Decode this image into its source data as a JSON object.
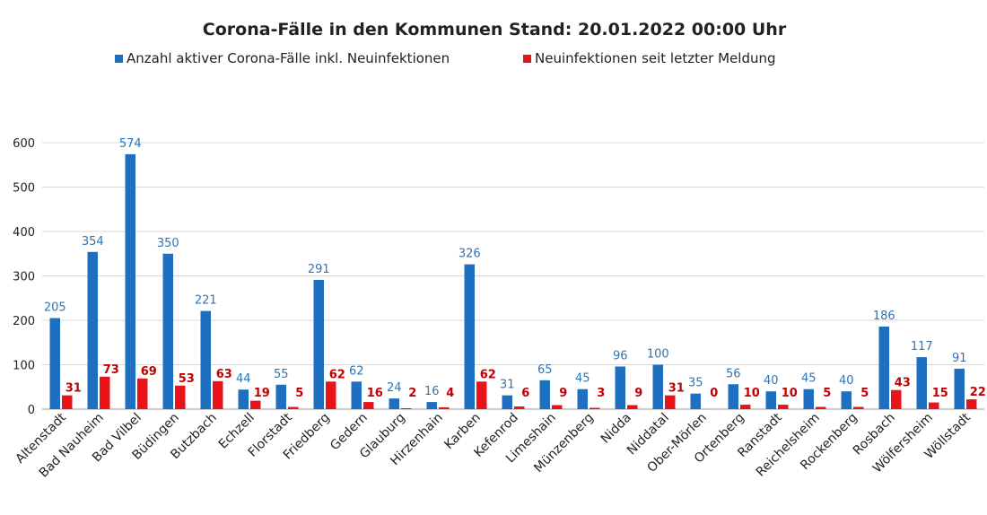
{
  "chart_data": {
    "type": "bar",
    "title": "Corona-Fälle in den Kommunen Stand: 20.01.2022 00:00 Uhr",
    "categories": [
      "Altenstadt",
      "Bad Nauheim",
      "Bad Vilbel",
      "Büdingen",
      "Butzbach",
      "Echzell",
      "Florstadt",
      "Friedberg",
      "Gedern",
      "Glauburg",
      "Hirzenhain",
      "Karben",
      "Kefenrod",
      "Limeshain",
      "Münzenberg",
      "Nidda",
      "Niddatal",
      "Ober-Mörlen",
      "Ortenberg",
      "Ranstadt",
      "Reichelsheim",
      "Rockenberg",
      "Rosbach",
      "Wölfersheim",
      "Wöllstadt"
    ],
    "series": [
      {
        "name": "Anzahl aktiver Corona-Fälle inkl. Neuinfektionen",
        "color": "#1f6fc1",
        "label_color": "#2e75b6",
        "values": [
          205,
          354,
          574,
          350,
          221,
          44,
          55,
          291,
          62,
          24,
          16,
          326,
          31,
          65,
          45,
          96,
          100,
          35,
          56,
          40,
          45,
          40,
          186,
          117,
          91
        ]
      },
      {
        "name": "Neuinfektionen seit letzter Meldung",
        "color": "#e8141a",
        "label_color": "#c00000",
        "values": [
          31,
          73,
          69,
          53,
          63,
          19,
          5,
          62,
          16,
          2,
          4,
          62,
          6,
          9,
          3,
          9,
          31,
          0,
          10,
          10,
          5,
          5,
          43,
          15,
          22
        ]
      }
    ],
    "xlabel": "",
    "ylabel": "",
    "ylim": [
      0,
      600
    ],
    "yticks": [
      0,
      100,
      200,
      300,
      400,
      500,
      600
    ],
    "grid": true,
    "legend_position": "top"
  }
}
